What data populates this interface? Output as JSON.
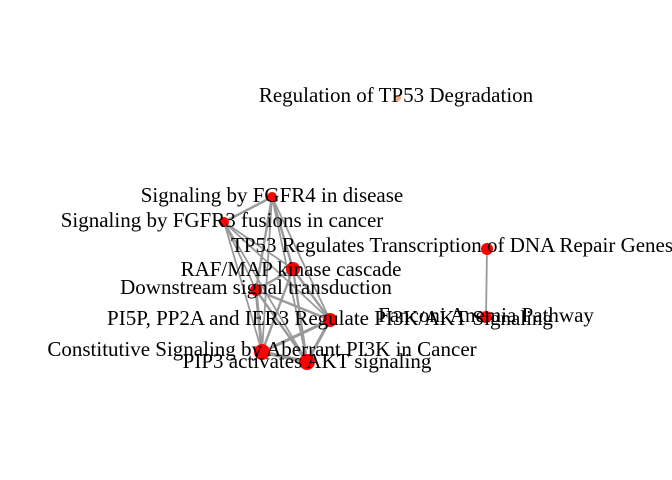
{
  "network": {
    "nodes": [
      {
        "id": "tp53deg",
        "label": "Regulation of TP53 Degradation",
        "color": "#f4a582",
        "size": 3
      },
      {
        "id": "fgfr4",
        "label": "Signaling by FGFR4 in disease",
        "color": "#ff0000",
        "size": 5
      },
      {
        "id": "fgfr3",
        "label": "Signaling by FGFR3 fusions in cancer",
        "color": "#ff0000",
        "size": 5
      },
      {
        "id": "tp53dna",
        "label": "TP53 Regulates Transcription of DNA Repair Genes",
        "color": "#ff0000",
        "size": 6
      },
      {
        "id": "raf",
        "label": "RAF/MAP kinase cascade",
        "color": "#ff0000",
        "size": 7
      },
      {
        "id": "downstream",
        "label": "Downstream signal transduction",
        "color": "#ff0000",
        "size": 6
      },
      {
        "id": "fanconi",
        "label": "Fanconi Anemia Pathway",
        "color": "#ff0000",
        "size": 6
      },
      {
        "id": "pi5p",
        "label": "PI5P, PP2A and IER3 Regulate PI3K/AKT Signaling",
        "color": "#ff0000",
        "size": 7
      },
      {
        "id": "constitutive",
        "label": "Constitutive Signaling by Aberrant PI3K in Cancer",
        "color": "#ff0000",
        "size": 8
      },
      {
        "id": "pip3",
        "label": "PIP3 activates AKT signaling",
        "color": "#ff0000",
        "size": 8
      }
    ],
    "edges": [
      {
        "source": "fgfr4",
        "target": "fgfr3",
        "weight": 3
      },
      {
        "source": "fgfr4",
        "target": "raf",
        "weight": 3
      },
      {
        "source": "fgfr4",
        "target": "downstream",
        "weight": 3
      },
      {
        "source": "fgfr4",
        "target": "constitutive",
        "weight": 2
      },
      {
        "source": "fgfr4",
        "target": "pi5p",
        "weight": 2
      },
      {
        "source": "fgfr4",
        "target": "pip3",
        "weight": 2
      },
      {
        "source": "fgfr3",
        "target": "raf",
        "weight": 2
      },
      {
        "source": "fgfr3",
        "target": "constitutive",
        "weight": 2
      },
      {
        "source": "fgfr3",
        "target": "pi5p",
        "weight": 2
      },
      {
        "source": "fgfr3",
        "target": "pip3",
        "weight": 2
      },
      {
        "source": "fgfr3",
        "target": "downstream",
        "weight": 2
      },
      {
        "source": "raf",
        "target": "downstream",
        "weight": 3
      },
      {
        "source": "raf",
        "target": "pi5p",
        "weight": 3
      },
      {
        "source": "raf",
        "target": "constitutive",
        "weight": 3
      },
      {
        "source": "raf",
        "target": "pip3",
        "weight": 3
      },
      {
        "source": "downstream",
        "target": "pi5p",
        "weight": 3
      },
      {
        "source": "downstream",
        "target": "constitutive",
        "weight": 4
      },
      {
        "source": "downstream",
        "target": "pip3",
        "weight": 3
      },
      {
        "source": "pi5p",
        "target": "constitutive",
        "weight": 4
      },
      {
        "source": "pi5p",
        "target": "pip3",
        "weight": 4
      },
      {
        "source": "constitutive",
        "target": "pip3",
        "weight": 5
      },
      {
        "source": "tp53dna",
        "target": "fanconi",
        "weight": 2
      }
    ]
  }
}
